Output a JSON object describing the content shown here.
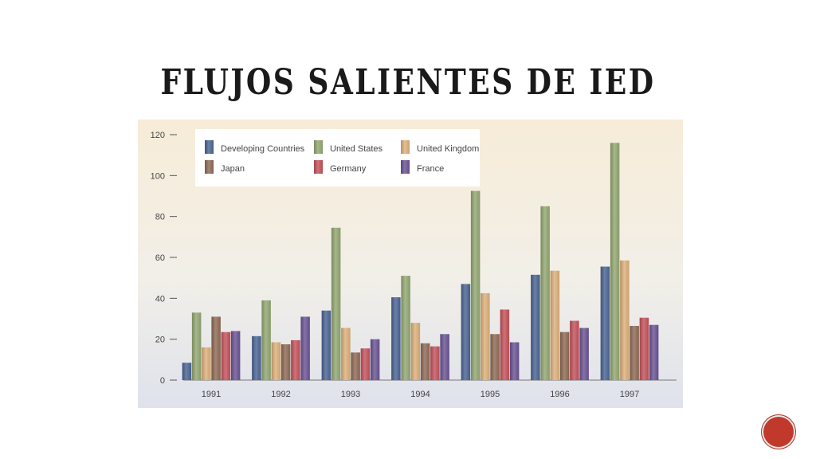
{
  "slide": {
    "title": "FLUJOS SALIENTES DE IED",
    "page_number": ""
  },
  "chart_data": {
    "type": "bar",
    "title": "",
    "xlabel": "",
    "ylabel": "",
    "ylim": [
      0,
      120
    ],
    "yticks": [
      0,
      20,
      40,
      60,
      80,
      100,
      120
    ],
    "categories": [
      "1991",
      "1992",
      "1993",
      "1994",
      "1995",
      "1996",
      "1997"
    ],
    "legend_position": "top-left",
    "grid": false,
    "series": [
      {
        "name": "Developing Countries",
        "color": "#4a6494",
        "values": [
          8.5,
          21.5,
          34,
          40.5,
          47,
          51.5,
          55.5
        ]
      },
      {
        "name": "United States",
        "color": "#93a772",
        "values": [
          33,
          39,
          74.5,
          51,
          92.5,
          85,
          116
        ]
      },
      {
        "name": "United Kingdom",
        "color": "#ddb07a",
        "values": [
          16,
          18.5,
          25.5,
          28,
          42.5,
          53.5,
          58.5
        ]
      },
      {
        "name": "Japan",
        "color": "#8f6a55",
        "values": [
          31,
          17.5,
          13.5,
          18,
          22.5,
          23.5,
          26.5
        ]
      },
      {
        "name": "Germany",
        "color": "#c4525a",
        "values": [
          23.5,
          19.5,
          15.5,
          16.5,
          34.5,
          29,
          30.5
        ]
      },
      {
        "name": "France",
        "color": "#6a5494",
        "values": [
          24,
          31,
          20,
          22.5,
          18.5,
          25.5,
          27
        ]
      }
    ]
  }
}
